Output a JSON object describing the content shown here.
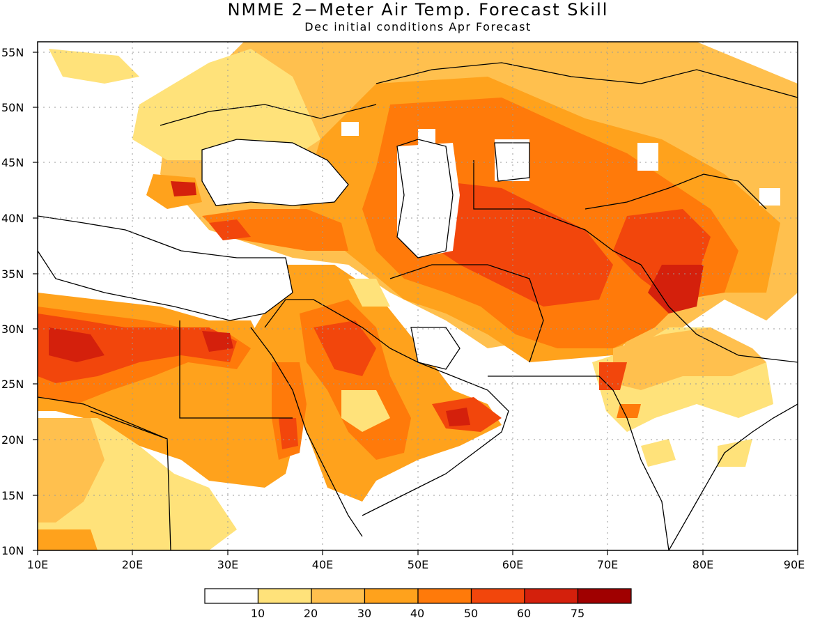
{
  "title": "NMME 2−Meter Air Temp. Forecast Skill",
  "subtitle": "Dec initial conditions  Apr Forecast",
  "lat_labels": [
    "55N",
    "50N",
    "45N",
    "40N",
    "35N",
    "30N",
    "25N",
    "20N",
    "15N",
    "10N"
  ],
  "lon_labels": [
    "10E",
    "20E",
    "30E",
    "40E",
    "50E",
    "60E",
    "70E",
    "80E",
    "90E"
  ],
  "legend": {
    "colors": [
      "#ffffff",
      "#ffe27a",
      "#ffc04e",
      "#ffa21c",
      "#ff7a0a",
      "#f2460c",
      "#d4200c",
      "#a00000"
    ],
    "labels": [
      "10",
      "20",
      "30",
      "40",
      "50",
      "60",
      "75"
    ]
  }
}
